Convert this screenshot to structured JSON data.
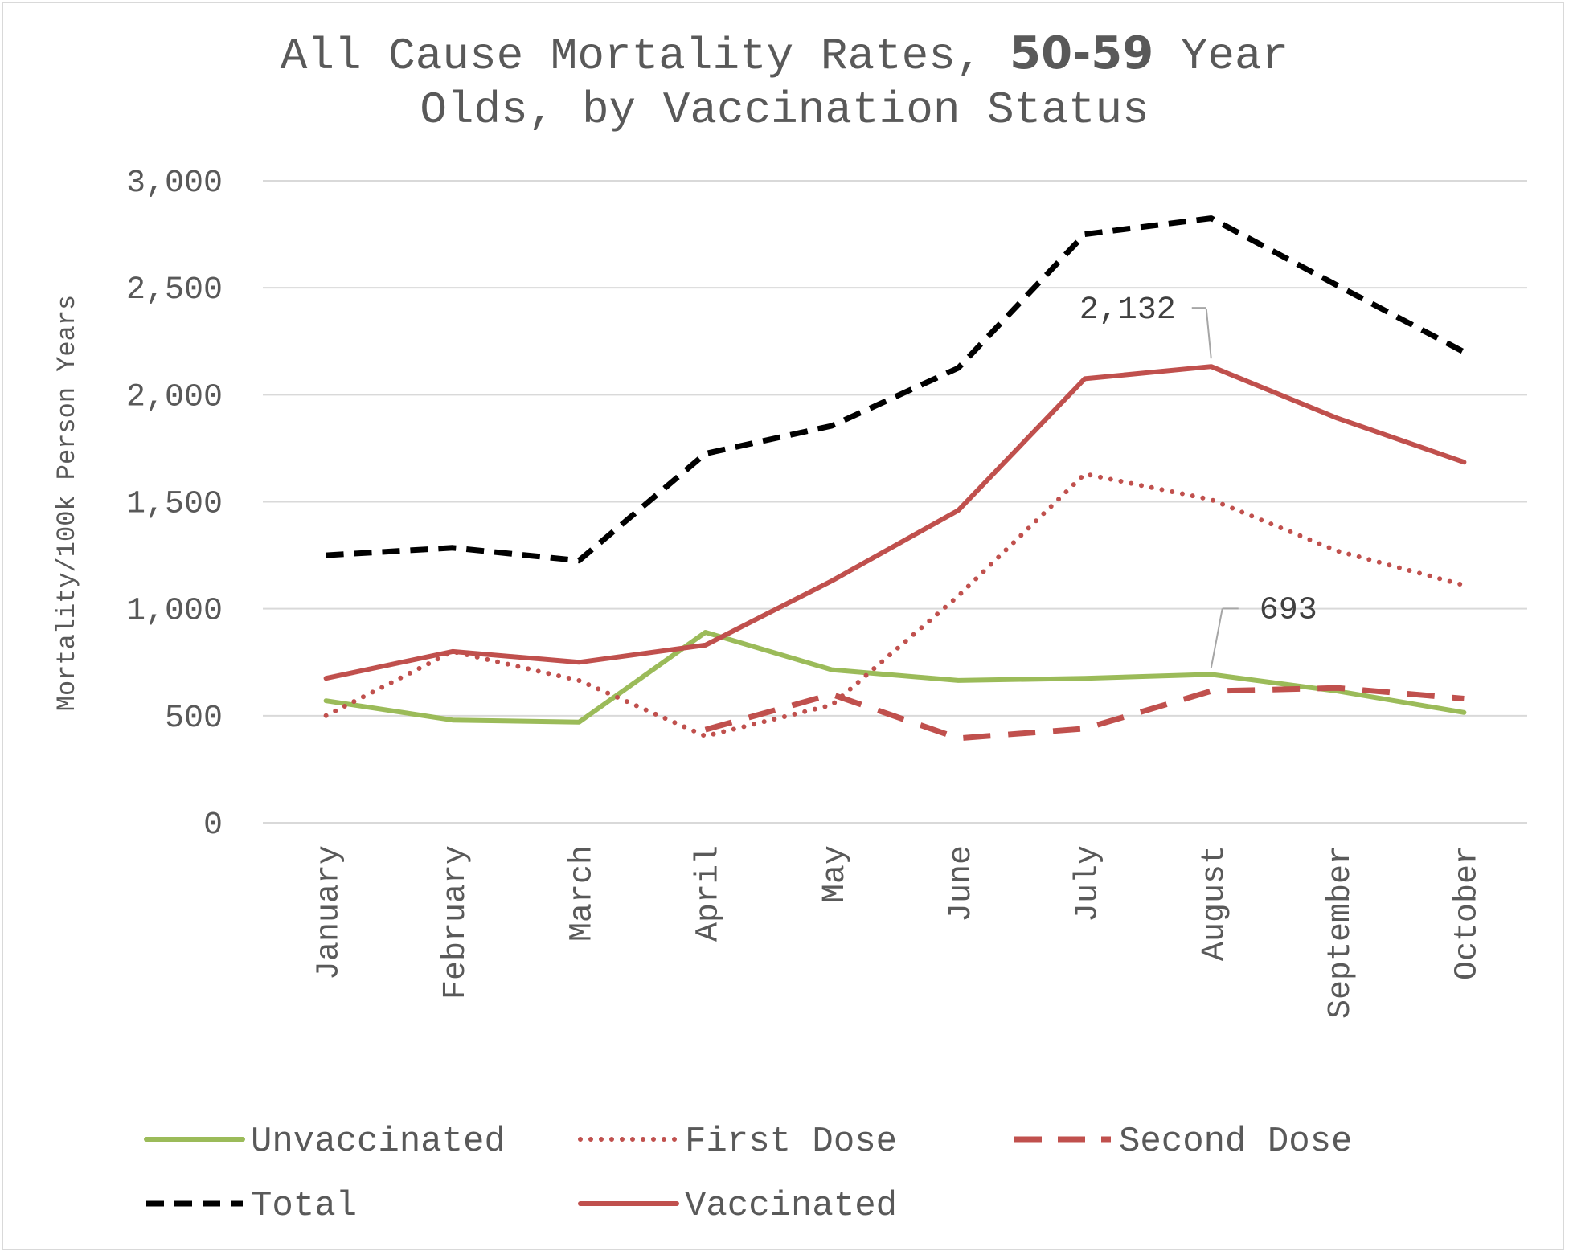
{
  "chart_data": {
    "type": "line",
    "title_parts": {
      "before": "All Cause Mortality Rates, ",
      "emphasis": "50-59",
      "after": " Year",
      "line2": "Olds, by Vaccination Status"
    },
    "ylabel": "Mortality/100k Person Years",
    "xlabel": "",
    "ylim": [
      0,
      3000
    ],
    "yticks": [
      "0",
      "500",
      "1,000",
      "1,500",
      "2,000",
      "2,500",
      "3,000"
    ],
    "grid": true,
    "legend_position": "bottom",
    "categories": [
      "January",
      "February",
      "March",
      "April",
      "May",
      "June",
      "July",
      "August",
      "September",
      "October"
    ],
    "series": [
      {
        "name": "Unvaccinated",
        "color": "#9bbb59",
        "style": "solid",
        "values": [
          570,
          480,
          470,
          890,
          715,
          665,
          675,
          693,
          615,
          515
        ]
      },
      {
        "name": "First Dose",
        "color": "#c0504d",
        "style": "dotted",
        "values": [
          500,
          800,
          665,
          405,
          550,
          1060,
          1630,
          1510,
          1270,
          1110
        ]
      },
      {
        "name": "Second Dose",
        "color": "#c0504d",
        "style": "dashed",
        "values": [
          null,
          null,
          null,
          435,
          600,
          395,
          440,
          615,
          630,
          580
        ]
      },
      {
        "name": "Total",
        "color": "#000000",
        "style": "dashed-short",
        "values": [
          1250,
          1285,
          1225,
          1725,
          1855,
          2125,
          2750,
          2825,
          2510,
          2200
        ]
      },
      {
        "name": "Vaccinated",
        "color": "#c0504d",
        "style": "solid",
        "values": [
          675,
          800,
          750,
          830,
          1130,
          1460,
          2075,
          2132,
          1890,
          1685
        ]
      }
    ],
    "annotations": [
      {
        "text": "2,132",
        "series": "Vaccinated",
        "category": "August"
      },
      {
        "text": "693",
        "series": "Unvaccinated",
        "category": "August"
      }
    ]
  }
}
